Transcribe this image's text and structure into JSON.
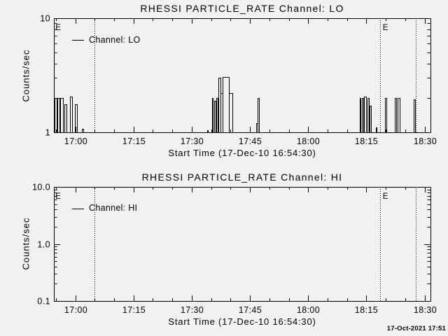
{
  "background_color": "#f1f1f1",
  "ink_color": "#000000",
  "footer": {
    "timestamp": "17-Oct-2021 17:51"
  },
  "chart_data": [
    {
      "type": "line",
      "title": "RHESSI PARTICLE_RATE Channel: LO",
      "xlabel": "Start Time (17-Dec-10 16:54:30)",
      "ylabel": "Counts/sec",
      "legend": {
        "label": "Channel: LO",
        "position": "upper-left-inside"
      },
      "grid": false,
      "yscale": "log",
      "ylim": [
        1,
        10
      ],
      "yticks": [
        {
          "v": 1,
          "label": "1"
        },
        {
          "v": 10,
          "label": "10"
        }
      ],
      "x_axis_start_time": "16:54:30",
      "xlim_minutes_after_start": [
        0,
        97
      ],
      "xticks": [
        {
          "t": 5.5,
          "label": "17:00"
        },
        {
          "t": 20.5,
          "label": "17:15"
        },
        {
          "t": 35.5,
          "label": "17:30"
        },
        {
          "t": 50.5,
          "label": "17:45"
        },
        {
          "t": 65.5,
          "label": "18:00"
        },
        {
          "t": 80.5,
          "label": "18:15"
        },
        {
          "t": 95.5,
          "label": "18:30"
        }
      ],
      "x_minor_tick_every_min": 5,
      "x_minor_tick_start_min": 0.5,
      "eclipse_marker_letter": "E",
      "eclipse_marker_times_min": [
        0.4,
        84.7
      ],
      "eclipse_dotted_lines_min": [
        10.5,
        84.1,
        93.3
      ],
      "series": [
        {
          "name": "Channel: LO",
          "baseline_value": 1,
          "segments_min_value": [
            [
              0.13,
              0.72,
              2.0
            ],
            [
              0.85,
              1.44,
              2.0
            ],
            [
              1.62,
              2.34,
              2.0
            ],
            [
              2.65,
              3.25,
              1.75
            ],
            [
              4.15,
              4.75,
              2.05
            ],
            [
              5.35,
              5.95,
              1.75
            ],
            [
              7.3,
              7.55,
              1.07
            ],
            [
              39.55,
              39.75,
              1.05
            ],
            [
              40.7,
              41.0,
              2.0
            ],
            [
              41.35,
              41.62,
              1.9
            ],
            [
              41.9,
              42.18,
              2.0
            ],
            [
              42.3,
              42.9,
              3.0
            ],
            [
              42.9,
              43.5,
              2.2
            ],
            [
              43.5,
              45.0,
              3.05
            ],
            [
              45.0,
              45.9,
              2.2
            ],
            [
              52.15,
              52.4,
              1.2
            ],
            [
              52.4,
              52.75,
              2.0
            ],
            [
              78.7,
              79.0,
              2.0
            ],
            [
              79.3,
              79.65,
              2.0
            ],
            [
              79.95,
              80.5,
              2.05
            ],
            [
              80.8,
              81.1,
              2.0
            ],
            [
              81.35,
              81.75,
              1.7
            ],
            [
              83.0,
              83.2,
              1.1
            ],
            [
              85.25,
              85.65,
              2.0
            ],
            [
              87.75,
              88.1,
              2.0
            ],
            [
              88.6,
              89.0,
              2.0
            ],
            [
              92.75,
              93.1,
              1.95
            ]
          ]
        }
      ]
    },
    {
      "type": "line",
      "title": "RHESSI PARTICLE_RATE Channel: HI",
      "xlabel": "Start Time (17-Dec-10 16:54:30)",
      "ylabel": "Counts/sec",
      "legend": {
        "label": "Channel: HI",
        "position": "upper-left-inside"
      },
      "grid": false,
      "yscale": "log",
      "ylim": [
        0.1,
        10
      ],
      "yticks": [
        {
          "v": 0.1,
          "label": "0.1"
        },
        {
          "v": 1,
          "label": "1.0"
        },
        {
          "v": 10,
          "label": "10.0"
        }
      ],
      "x_axis_start_time": "16:54:30",
      "xlim_minutes_after_start": [
        0,
        97
      ],
      "xticks": [
        {
          "t": 5.5,
          "label": "17:00"
        },
        {
          "t": 20.5,
          "label": "17:15"
        },
        {
          "t": 35.5,
          "label": "17:30"
        },
        {
          "t": 50.5,
          "label": "17:45"
        },
        {
          "t": 65.5,
          "label": "18:00"
        },
        {
          "t": 80.5,
          "label": "18:15"
        },
        {
          "t": 95.5,
          "label": "18:30"
        }
      ],
      "x_minor_tick_every_min": 5,
      "x_minor_tick_start_min": 0.5,
      "eclipse_marker_letter": "E",
      "eclipse_marker_times_min": [
        0.4,
        84.7
      ],
      "eclipse_dotted_lines_min": [
        10.5,
        84.1,
        93.3
      ],
      "series": [
        {
          "name": "Channel: HI",
          "baseline_value": 0.1,
          "segments_min_value": []
        }
      ]
    }
  ]
}
